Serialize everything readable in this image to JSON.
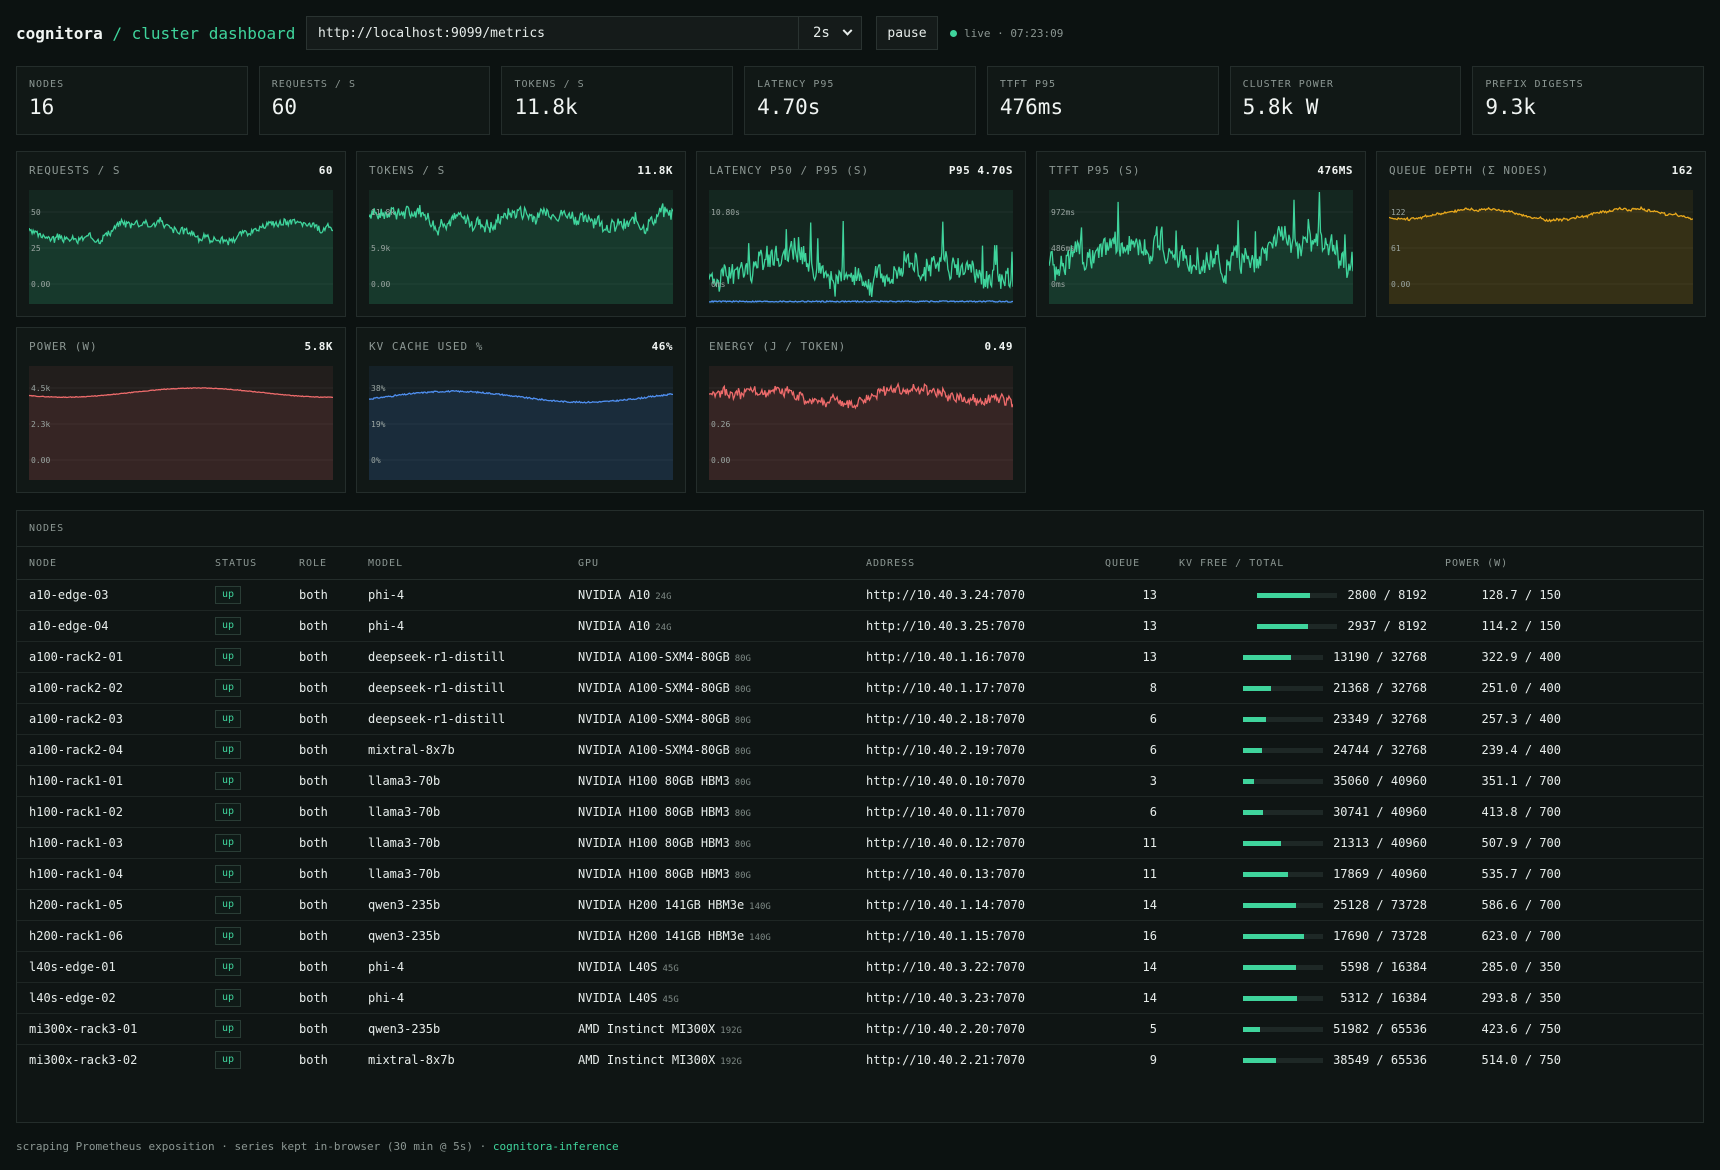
{
  "header": {
    "brand": "cognitora",
    "separator": "/",
    "subtitle": "cluster dashboard",
    "metrics_url": "http://localhost:9099/metrics",
    "interval": "2s",
    "pause_label": "pause",
    "live_label": "live",
    "live_time": "07:23:09"
  },
  "stats": [
    {
      "label": "NODES",
      "value": "16"
    },
    {
      "label": "REQUESTS / S",
      "value": "60"
    },
    {
      "label": "TOKENS / S",
      "value": "11.8k"
    },
    {
      "label": "LATENCY P95",
      "value": "4.70s"
    },
    {
      "label": "TTFT P95",
      "value": "476ms"
    },
    {
      "label": "CLUSTER POWER",
      "value": "5.8k W"
    },
    {
      "label": "PREFIX DIGESTS",
      "value": "9.3k"
    }
  ],
  "chart_data": [
    {
      "type": "area",
      "title": "REQUESTS / S",
      "value": "60",
      "color": "#3fd49c",
      "ticks": [
        "50",
        "25",
        "0.00"
      ],
      "ylim": [
        0,
        75
      ],
      "base": 48,
      "amp": 6,
      "noise": 4,
      "seed": 3
    },
    {
      "type": "area",
      "title": "TOKENS / S",
      "value": "11.8K",
      "color": "#3fd49c",
      "ticks": [
        "11.8k",
        "5.9k",
        "0.00"
      ],
      "ylim": [
        0,
        14750
      ],
      "base": 11200,
      "amp": 800,
      "noise": 1400,
      "seed": 7
    },
    {
      "type": "line",
      "title": "LATENCY P50 / P95 (S)",
      "value": "P95 4.70S",
      "color": "#3fd49c",
      "color2": "#4f8ff0",
      "ticks": [
        "10.80s",
        "",
        "0ms"
      ],
      "ylim": [
        0,
        13.5
      ],
      "base": 4.0,
      "amp": 1.2,
      "noise": 2.2,
      "seed": 11,
      "spikes": true,
      "second": {
        "base": 0.3,
        "noise": 0.15
      }
    },
    {
      "type": "area",
      "title": "TTFT P95 (S)",
      "value": "476MS",
      "color": "#3fd49c",
      "ticks": [
        "972ms",
        "486ms",
        "0ms"
      ],
      "ylim": [
        0,
        1215
      ],
      "base": 560,
      "amp": 120,
      "noise": 220,
      "seed": 17,
      "spikes": true
    },
    {
      "type": "area",
      "title": "QUEUE DEPTH (Σ NODES)",
      "value": "162",
      "color": "#e8a81c",
      "ticks": [
        "122",
        "61",
        "0.00"
      ],
      "ylim": [
        0,
        205
      ],
      "base": 162,
      "amp": 10,
      "noise": 4,
      "seed": 23
    },
    {
      "type": "area",
      "title": "POWER (W)",
      "value": "5.8K",
      "color": "#ee6b6b",
      "ticks": [
        "4.5k",
        "2.3k",
        "0.00"
      ],
      "ylim": [
        0,
        7500
      ],
      "base": 5750,
      "amp": 300,
      "noise": 40,
      "seed": 29,
      "smooth": true
    },
    {
      "type": "area",
      "title": "KV CACHE USED %",
      "value": "46%",
      "color": "#4f8ff0",
      "ticks": [
        "38%",
        "19%",
        "0%"
      ],
      "ylim": [
        0,
        63
      ],
      "base": 46,
      "amp": 3,
      "noise": 0.8,
      "seed": 31,
      "smooth": true
    },
    {
      "type": "area",
      "title": "ENERGY (J / TOKEN)",
      "value": "0.49",
      "color": "#ee6b6b",
      "ticks": [
        "",
        "0.26",
        "0.00"
      ],
      "ylim": [
        0,
        0.66
      ],
      "base": 0.49,
      "amp": 0.03,
      "noise": 0.05,
      "seed": 37
    }
  ],
  "nodes": {
    "title": "NODES",
    "columns": [
      "NODE",
      "STATUS",
      "ROLE",
      "MODEL",
      "GPU",
      "ADDRESS",
      "QUEUE",
      "KV FREE / TOTAL",
      "POWER (W)"
    ],
    "rows": [
      {
        "node": "a10-edge-03",
        "status": "up",
        "role": "both",
        "model": "phi-4",
        "gpu": "NVIDIA A10",
        "mem": "24G",
        "address": "http://10.40.3.24:7070",
        "queue": "13",
        "kv": "2800 / 8192",
        "kv_used": 0.66,
        "power": "128.7 / 150"
      },
      {
        "node": "a10-edge-04",
        "status": "up",
        "role": "both",
        "model": "phi-4",
        "gpu": "NVIDIA A10",
        "mem": "24G",
        "address": "http://10.40.3.25:7070",
        "queue": "13",
        "kv": "2937 / 8192",
        "kv_used": 0.64,
        "power": "114.2 / 150"
      },
      {
        "node": "a100-rack2-01",
        "status": "up",
        "role": "both",
        "model": "deepseek-r1-distill",
        "gpu": "NVIDIA A100-SXM4-80GB",
        "mem": "80G",
        "address": "http://10.40.1.16:7070",
        "queue": "13",
        "kv": "13190 / 32768",
        "kv_used": 0.6,
        "power": "322.9 / 400"
      },
      {
        "node": "a100-rack2-02",
        "status": "up",
        "role": "both",
        "model": "deepseek-r1-distill",
        "gpu": "NVIDIA A100-SXM4-80GB",
        "mem": "80G",
        "address": "http://10.40.1.17:7070",
        "queue": "8",
        "kv": "21368 / 32768",
        "kv_used": 0.35,
        "power": "251.0 / 400"
      },
      {
        "node": "a100-rack2-03",
        "status": "up",
        "role": "both",
        "model": "deepseek-r1-distill",
        "gpu": "NVIDIA A100-SXM4-80GB",
        "mem": "80G",
        "address": "http://10.40.2.18:7070",
        "queue": "6",
        "kv": "23349 / 32768",
        "kv_used": 0.29,
        "power": "257.3 / 400"
      },
      {
        "node": "a100-rack2-04",
        "status": "up",
        "role": "both",
        "model": "mixtral-8x7b",
        "gpu": "NVIDIA A100-SXM4-80GB",
        "mem": "80G",
        "address": "http://10.40.2.19:7070",
        "queue": "6",
        "kv": "24744 / 32768",
        "kv_used": 0.24,
        "power": "239.4 / 400"
      },
      {
        "node": "h100-rack1-01",
        "status": "up",
        "role": "both",
        "model": "llama3-70b",
        "gpu": "NVIDIA H100 80GB HBM3",
        "mem": "80G",
        "address": "http://10.40.0.10:7070",
        "queue": "3",
        "kv": "35060 / 40960",
        "kv_used": 0.14,
        "power": "351.1 / 700"
      },
      {
        "node": "h100-rack1-02",
        "status": "up",
        "role": "both",
        "model": "llama3-70b",
        "gpu": "NVIDIA H100 80GB HBM3",
        "mem": "80G",
        "address": "http://10.40.0.11:7070",
        "queue": "6",
        "kv": "30741 / 40960",
        "kv_used": 0.25,
        "power": "413.8 / 700"
      },
      {
        "node": "h100-rack1-03",
        "status": "up",
        "role": "both",
        "model": "llama3-70b",
        "gpu": "NVIDIA H100 80GB HBM3",
        "mem": "80G",
        "address": "http://10.40.0.12:7070",
        "queue": "11",
        "kv": "21313 / 40960",
        "kv_used": 0.48,
        "power": "507.9 / 700"
      },
      {
        "node": "h100-rack1-04",
        "status": "up",
        "role": "both",
        "model": "llama3-70b",
        "gpu": "NVIDIA H100 80GB HBM3",
        "mem": "80G",
        "address": "http://10.40.0.13:7070",
        "queue": "11",
        "kv": "17869 / 40960",
        "kv_used": 0.56,
        "power": "535.7 / 700"
      },
      {
        "node": "h200-rack1-05",
        "status": "up",
        "role": "both",
        "model": "qwen3-235b",
        "gpu": "NVIDIA H200 141GB HBM3e",
        "mem": "140G",
        "address": "http://10.40.1.14:7070",
        "queue": "14",
        "kv": "25128 / 73728",
        "kv_used": 0.66,
        "power": "586.6 / 700"
      },
      {
        "node": "h200-rack1-06",
        "status": "up",
        "role": "both",
        "model": "qwen3-235b",
        "gpu": "NVIDIA H200 141GB HBM3e",
        "mem": "140G",
        "address": "http://10.40.1.15:7070",
        "queue": "16",
        "kv": "17690 / 73728",
        "kv_used": 0.76,
        "power": "623.0 / 700"
      },
      {
        "node": "l40s-edge-01",
        "status": "up",
        "role": "both",
        "model": "phi-4",
        "gpu": "NVIDIA L40S",
        "mem": "45G",
        "address": "http://10.40.3.22:7070",
        "queue": "14",
        "kv": "5598 / 16384",
        "kv_used": 0.66,
        "power": "285.0 / 350"
      },
      {
        "node": "l40s-edge-02",
        "status": "up",
        "role": "both",
        "model": "phi-4",
        "gpu": "NVIDIA L40S",
        "mem": "45G",
        "address": "http://10.40.3.23:7070",
        "queue": "14",
        "kv": "5312 / 16384",
        "kv_used": 0.68,
        "power": "293.8 / 350"
      },
      {
        "node": "mi300x-rack3-01",
        "status": "up",
        "role": "both",
        "model": "qwen3-235b",
        "gpu": "AMD Instinct MI300X",
        "mem": "192G",
        "address": "http://10.40.2.20:7070",
        "queue": "5",
        "kv": "51982 / 65536",
        "kv_used": 0.21,
        "power": "423.6 / 750"
      },
      {
        "node": "mi300x-rack3-02",
        "status": "up",
        "role": "both",
        "model": "mixtral-8x7b",
        "gpu": "AMD Instinct MI300X",
        "mem": "192G",
        "address": "http://10.40.2.21:7070",
        "queue": "9",
        "kv": "38549 / 65536",
        "kv_used": 0.41,
        "power": "514.0 / 750"
      }
    ]
  },
  "footer": {
    "text": "scraping Prometheus exposition · series kept in-browser (30 min @ 5s) ·",
    "link": "cognitora-inference"
  }
}
